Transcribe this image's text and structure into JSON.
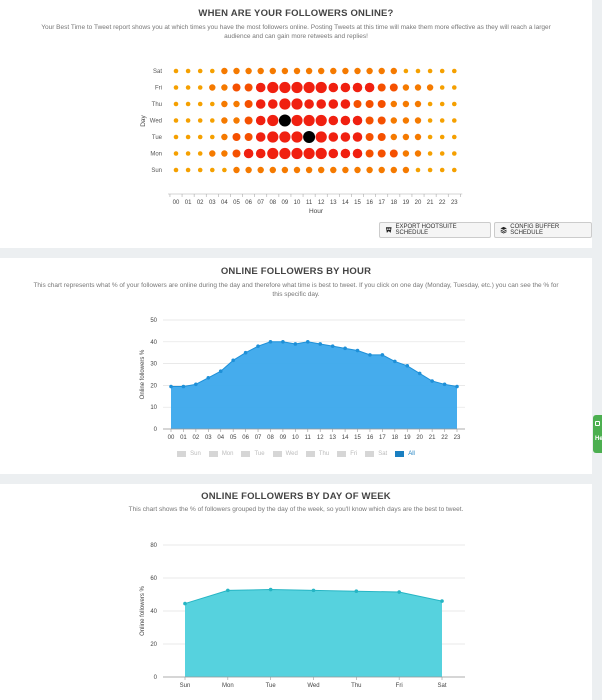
{
  "heatmap": {
    "title": "WHEN ARE YOUR FOLLOWERS ONLINE?",
    "description": "Your Best Time to Tweet report shows you at which times you have the most followers online. Posting Tweets at this time will make them more effective as they will reach a larger audience and can gain more retweets and replies!",
    "buttons": {
      "export_label": "EXPORT HOOTSUITE SCHEDULE",
      "config_label": "CONFIG BUFFER SCHEDULE"
    }
  },
  "hour_panel": {
    "title": "ONLINE FOLLOWERS BY HOUR",
    "description": "This chart represents what % of your followers are online during the day and therefore what time is best to tweet. If you click on one day (Monday, Tuesday, etc.) you can see the % for this specific day.",
    "legend": [
      {
        "label": "Sun",
        "active": false
      },
      {
        "label": "Mon",
        "active": false
      },
      {
        "label": "Tue",
        "active": false
      },
      {
        "label": "Wed",
        "active": false
      },
      {
        "label": "Thu",
        "active": false
      },
      {
        "label": "Fri",
        "active": false
      },
      {
        "label": "Sat",
        "active": false
      },
      {
        "label": "All",
        "active": true
      }
    ]
  },
  "day_panel": {
    "title": "ONLINE FOLLOWERS BY DAY OF WEEK",
    "description": "This chart shows the % of followers grouped by the day of the week, so you'll know which days are the best to tweet."
  },
  "side_tab": {
    "label": "He"
  },
  "chart_data": [
    {
      "type": "heatmap",
      "title": "",
      "xlabel": "Hour",
      "ylabel": "Day",
      "x": [
        "00",
        "01",
        "02",
        "03",
        "04",
        "05",
        "06",
        "07",
        "08",
        "09",
        "10",
        "11",
        "12",
        "13",
        "14",
        "15",
        "16",
        "17",
        "18",
        "19",
        "20",
        "21",
        "22",
        "23"
      ],
      "y": [
        "Sat",
        "Fri",
        "Thu",
        "Wed",
        "Tue",
        "Mon",
        "Sun"
      ],
      "values": [
        [
          1,
          1,
          1,
          1,
          2,
          2,
          2,
          2,
          2,
          2,
          2,
          2,
          2,
          2,
          2,
          2,
          2,
          2,
          2,
          1,
          1,
          1,
          1,
          1
        ],
        [
          1,
          1,
          1,
          2,
          2,
          3,
          3,
          4,
          5,
          5,
          5,
          5,
          5,
          4,
          4,
          4,
          4,
          3,
          3,
          2,
          2,
          2,
          1,
          1
        ],
        [
          1,
          1,
          1,
          1,
          2,
          2,
          3,
          4,
          4,
          5,
          5,
          4,
          4,
          4,
          4,
          3,
          3,
          3,
          2,
          2,
          2,
          1,
          1,
          1
        ],
        [
          1,
          1,
          1,
          1,
          2,
          2,
          3,
          4,
          5,
          6,
          5,
          5,
          5,
          4,
          4,
          4,
          3,
          3,
          2,
          2,
          2,
          1,
          1,
          1
        ],
        [
          1,
          1,
          1,
          1,
          2,
          3,
          3,
          4,
          5,
          5,
          5,
          6,
          5,
          4,
          4,
          4,
          3,
          3,
          2,
          2,
          2,
          1,
          1,
          1
        ],
        [
          1,
          1,
          1,
          2,
          2,
          3,
          4,
          4,
          5,
          5,
          5,
          5,
          5,
          4,
          4,
          4,
          3,
          3,
          3,
          2,
          2,
          1,
          1,
          1
        ],
        [
          1,
          1,
          1,
          1,
          1,
          2,
          2,
          2,
          2,
          2,
          2,
          2,
          2,
          2,
          2,
          2,
          2,
          2,
          2,
          2,
          1,
          1,
          1,
          1
        ]
      ],
      "colors": {
        "low": "#f5a000",
        "mid": "#f57a00",
        "high": "#f55000",
        "peak": "#f02010",
        "best": "#000000"
      }
    },
    {
      "type": "area",
      "title": "",
      "xlabel": "",
      "ylabel": "Online followers %",
      "x": [
        "00",
        "01",
        "02",
        "03",
        "04",
        "05",
        "06",
        "07",
        "08",
        "09",
        "10",
        "11",
        "12",
        "13",
        "14",
        "15",
        "16",
        "17",
        "18",
        "19",
        "20",
        "21",
        "22",
        "23"
      ],
      "series": [
        {
          "name": "All",
          "values": [
            19.5,
            19.5,
            20.5,
            23.5,
            26.5,
            31.5,
            35,
            38,
            40,
            40,
            39,
            40,
            39,
            38,
            37,
            36,
            34,
            34,
            31,
            29,
            25.5,
            22,
            20.5,
            19.5
          ]
        }
      ],
      "ylim": [
        0,
        50
      ],
      "yticks": [
        0,
        10,
        20,
        30,
        40,
        50
      ],
      "grid": true,
      "color": "#3ba8ec"
    },
    {
      "type": "area",
      "title": "",
      "xlabel": "",
      "ylabel": "Online followers %",
      "categories": [
        "Sun",
        "Mon",
        "Tue",
        "Wed",
        "Thu",
        "Fri",
        "Sat"
      ],
      "values": [
        44.5,
        52.5,
        53,
        52.5,
        52,
        51.5,
        46
      ],
      "ylim": [
        0,
        80
      ],
      "yticks": [
        0,
        20,
        40,
        60,
        80
      ],
      "grid": true,
      "color": "#4dd0dc"
    }
  ]
}
